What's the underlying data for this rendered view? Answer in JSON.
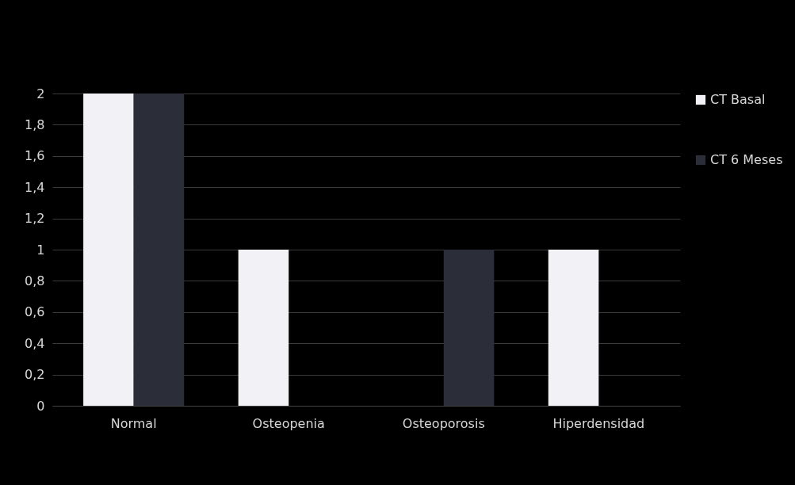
{
  "chart_data": {
    "type": "bar",
    "categories": [
      "Normal",
      "Osteopenia",
      "Osteoporosis",
      "Hiperdensidad"
    ],
    "series": [
      {
        "name": "CT Basal",
        "color": "#f2f2f6",
        "values": [
          2,
          1,
          0,
          1
        ]
      },
      {
        "name": "CT 6 Meses",
        "color": "#2b2e38",
        "values": [
          2,
          0,
          1,
          0
        ]
      }
    ],
    "ylim": [
      0,
      2
    ],
    "yticks": [
      0,
      {
        "value": 0.2,
        "label": "0,2"
      },
      {
        "value": 0.4,
        "label": "0,4"
      },
      {
        "value": 0.6,
        "label": "0,6"
      },
      {
        "value": 0.8,
        "label": "0,8"
      },
      1,
      {
        "value": 1.2,
        "label": "1,2"
      },
      {
        "value": 1.4,
        "label": "1,4"
      },
      {
        "value": 1.6,
        "label": "1,6"
      },
      {
        "value": 1.8,
        "label": "1,8"
      },
      2
    ],
    "grid": "y",
    "legend": "right"
  }
}
